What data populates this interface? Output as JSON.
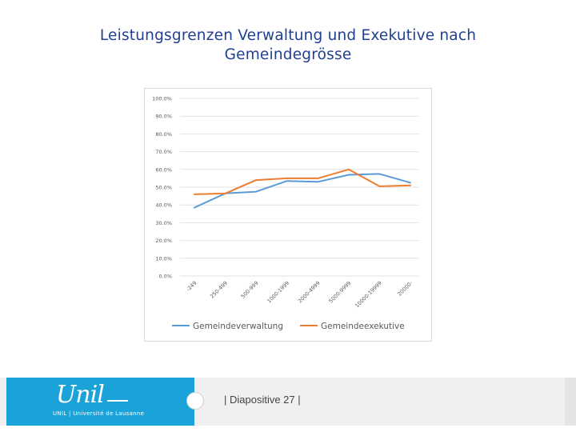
{
  "slide": {
    "title_line1": "Leistungsgrenzen Verwaltung und Exekutive nach",
    "title_line2": "Gemeindegrösse"
  },
  "footer": {
    "logo_script": "Unil",
    "logo_caption": "UNIL | Université de Lausanne",
    "slide_label": "| Diapositive 27 |"
  },
  "colors": {
    "title": "#1f3f8f",
    "footer_accent": "#1aa2d9"
  },
  "chart_data": {
    "type": "line",
    "title": "",
    "xlabel": "",
    "ylabel": "",
    "categories": [
      "-249",
      "250-499",
      "500-999",
      "1000-1999",
      "2000-4999",
      "5000-9999",
      "10000-19999",
      "20000-"
    ],
    "y_ticks": [
      "0.0%",
      "10.0%",
      "20.0%",
      "30.0%",
      "40.0%",
      "50.0%",
      "60.0%",
      "70.0%",
      "80.0%",
      "90.0%",
      "100.0%"
    ],
    "ylim": [
      0,
      100
    ],
    "grid": true,
    "legend_position": "bottom",
    "series": [
      {
        "name": "Gemeindeverwaltung",
        "color": "#5b9bd5",
        "values": [
          38.5,
          46.5,
          47.5,
          53.5,
          53,
          57,
          57.5,
          52.5
        ]
      },
      {
        "name": "Gemeindeexekutive",
        "color": "#ed7d31",
        "values": [
          46,
          46.5,
          54,
          55,
          55,
          60,
          50.5,
          51
        ]
      }
    ]
  }
}
